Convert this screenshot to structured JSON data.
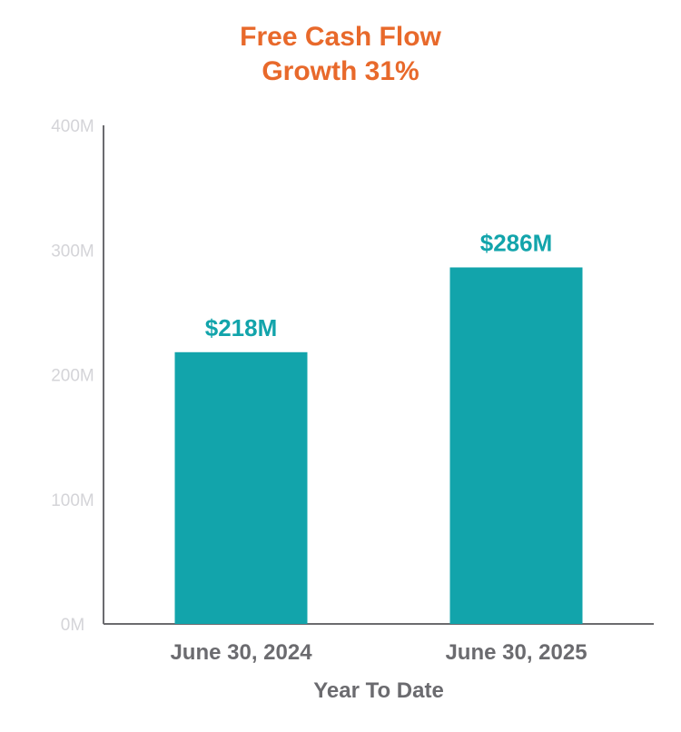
{
  "chart_data": {
    "type": "bar",
    "title_lines": [
      "Free Cash Flow",
      "Growth 31%"
    ],
    "categories": [
      "June 30, 2024",
      "June 30, 2025"
    ],
    "values": [
      218,
      286
    ],
    "data_labels": [
      "$218M",
      "$286M"
    ],
    "xlabel": "Year To Date",
    "ylabel": "",
    "ylim": [
      0,
      400
    ],
    "y_ticks": [
      0,
      100,
      200,
      300,
      400
    ],
    "y_tick_labels": [
      "0M",
      "100M",
      "200M",
      "300M",
      "400M"
    ],
    "grid": false,
    "legend": "none",
    "colors": {
      "title": "#e8692b",
      "bar": "#12a4ab",
      "data_label": "#12a4ab",
      "axis": "#6b6b6f",
      "tick_label": "#d4d4d8",
      "category_label": "#6b6b6f"
    }
  }
}
